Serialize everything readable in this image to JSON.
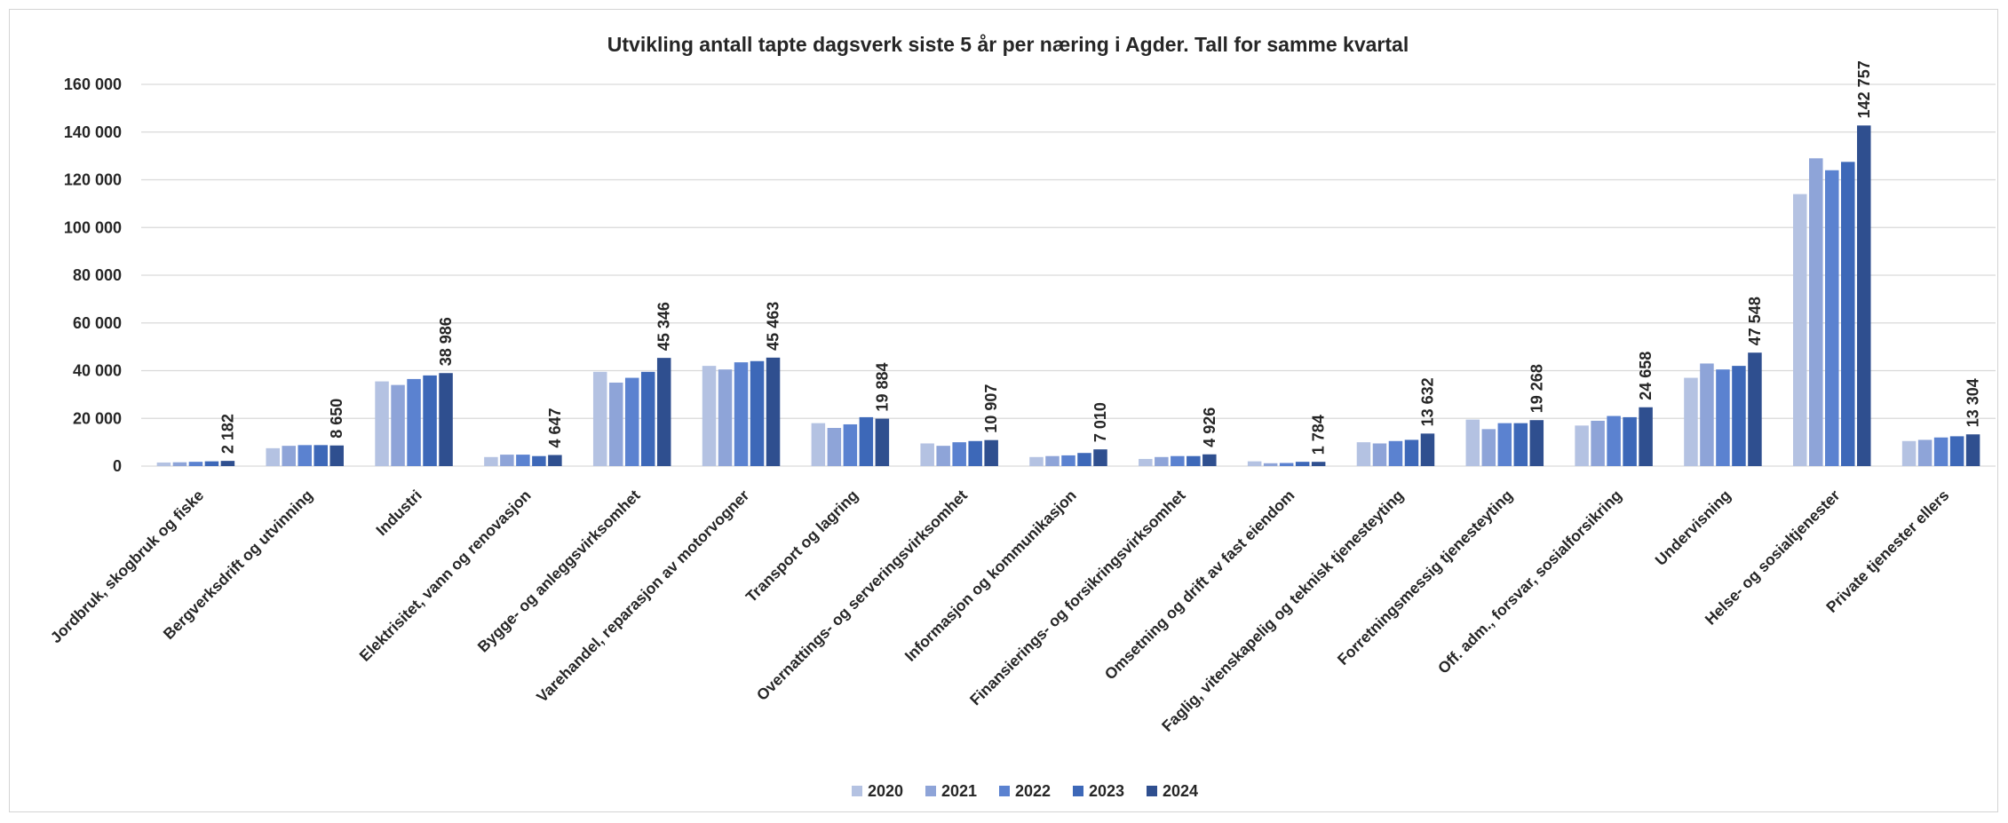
{
  "chart_data": {
    "type": "bar",
    "title": "Utvikling antall tapte dagsverk siste 5 år per næring i Agder. Tall for samme kvartal",
    "xlabel": "",
    "ylabel": "",
    "ylim": [
      0,
      160000
    ],
    "yticks": [
      0,
      20000,
      40000,
      60000,
      80000,
      100000,
      120000,
      140000,
      160000
    ],
    "ytick_labels": [
      "0",
      "20 000",
      "40 000",
      "60 000",
      "80 000",
      "100 000",
      "120 000",
      "140 000",
      "160 000"
    ],
    "grid": true,
    "legend_position": "bottom",
    "categories": [
      "Jordbruk, skogbruk og fiske",
      "Bergverksdrift og utvinning",
      "Industri",
      "Elektrisitet, vann og renovasjon",
      "Bygge- og anleggsvirksomhet",
      "Varehandel, reparasjon av motorvogner",
      "Transport og lagring",
      "Overnattings- og serveringsvirksomhet",
      "Informasjon og kommunikasjon",
      "Finansierings- og forsikringsvirksomhet",
      "Omsetning og drift av fast eiendom",
      "Faglig, vitenskapelig og teknisk tjenesteyting",
      "Forretningsmessig tjenesteyting",
      "Off. adm., forsvar, sosialforsikring",
      "Undervisning",
      "Helse- og sosialtjenester",
      "Private tjenester ellers"
    ],
    "series": [
      {
        "name": "2020",
        "color": "#b4c2e2",
        "values": [
          1500,
          7500,
          35500,
          3800,
          39500,
          42000,
          18000,
          9500,
          3800,
          3000,
          2000,
          10000,
          19500,
          17000,
          37000,
          114000,
          10500
        ]
      },
      {
        "name": "2021",
        "color": "#8ea4d8",
        "values": [
          1600,
          8500,
          34000,
          4800,
          35000,
          40500,
          16000,
          8500,
          4200,
          3800,
          1200,
          9500,
          15500,
          19000,
          43000,
          129000,
          11000
        ]
      },
      {
        "name": "2022",
        "color": "#5b82d0",
        "values": [
          1800,
          8800,
          36500,
          4800,
          37000,
          43500,
          17500,
          10000,
          4500,
          4200,
          1300,
          10500,
          18000,
          21000,
          40500,
          124000,
          12000
        ]
      },
      {
        "name": "2023",
        "color": "#3d68b8",
        "values": [
          2000,
          8800,
          38000,
          4200,
          39500,
          44000,
          20500,
          10500,
          5500,
          4200,
          1800,
          11000,
          18000,
          20500,
          42000,
          127500,
          12500
        ]
      },
      {
        "name": "2024",
        "color": "#2f4f8f",
        "values": [
          2182,
          8650,
          38986,
          4647,
          45346,
          45463,
          19884,
          10907,
          7010,
          4926,
          1784,
          13632,
          19268,
          24658,
          47548,
          142757,
          13304
        ]
      }
    ],
    "data_labels": {
      "series": "2024",
      "labels": [
        "2 182",
        "8 650",
        "38 986",
        "4 647",
        "45 346",
        "45 463",
        "19 884",
        "10 907",
        "7 010",
        "4 926",
        "1 784",
        "13 632",
        "19 268",
        "24 658",
        "47 548",
        "142 757",
        "13 304"
      ]
    }
  }
}
